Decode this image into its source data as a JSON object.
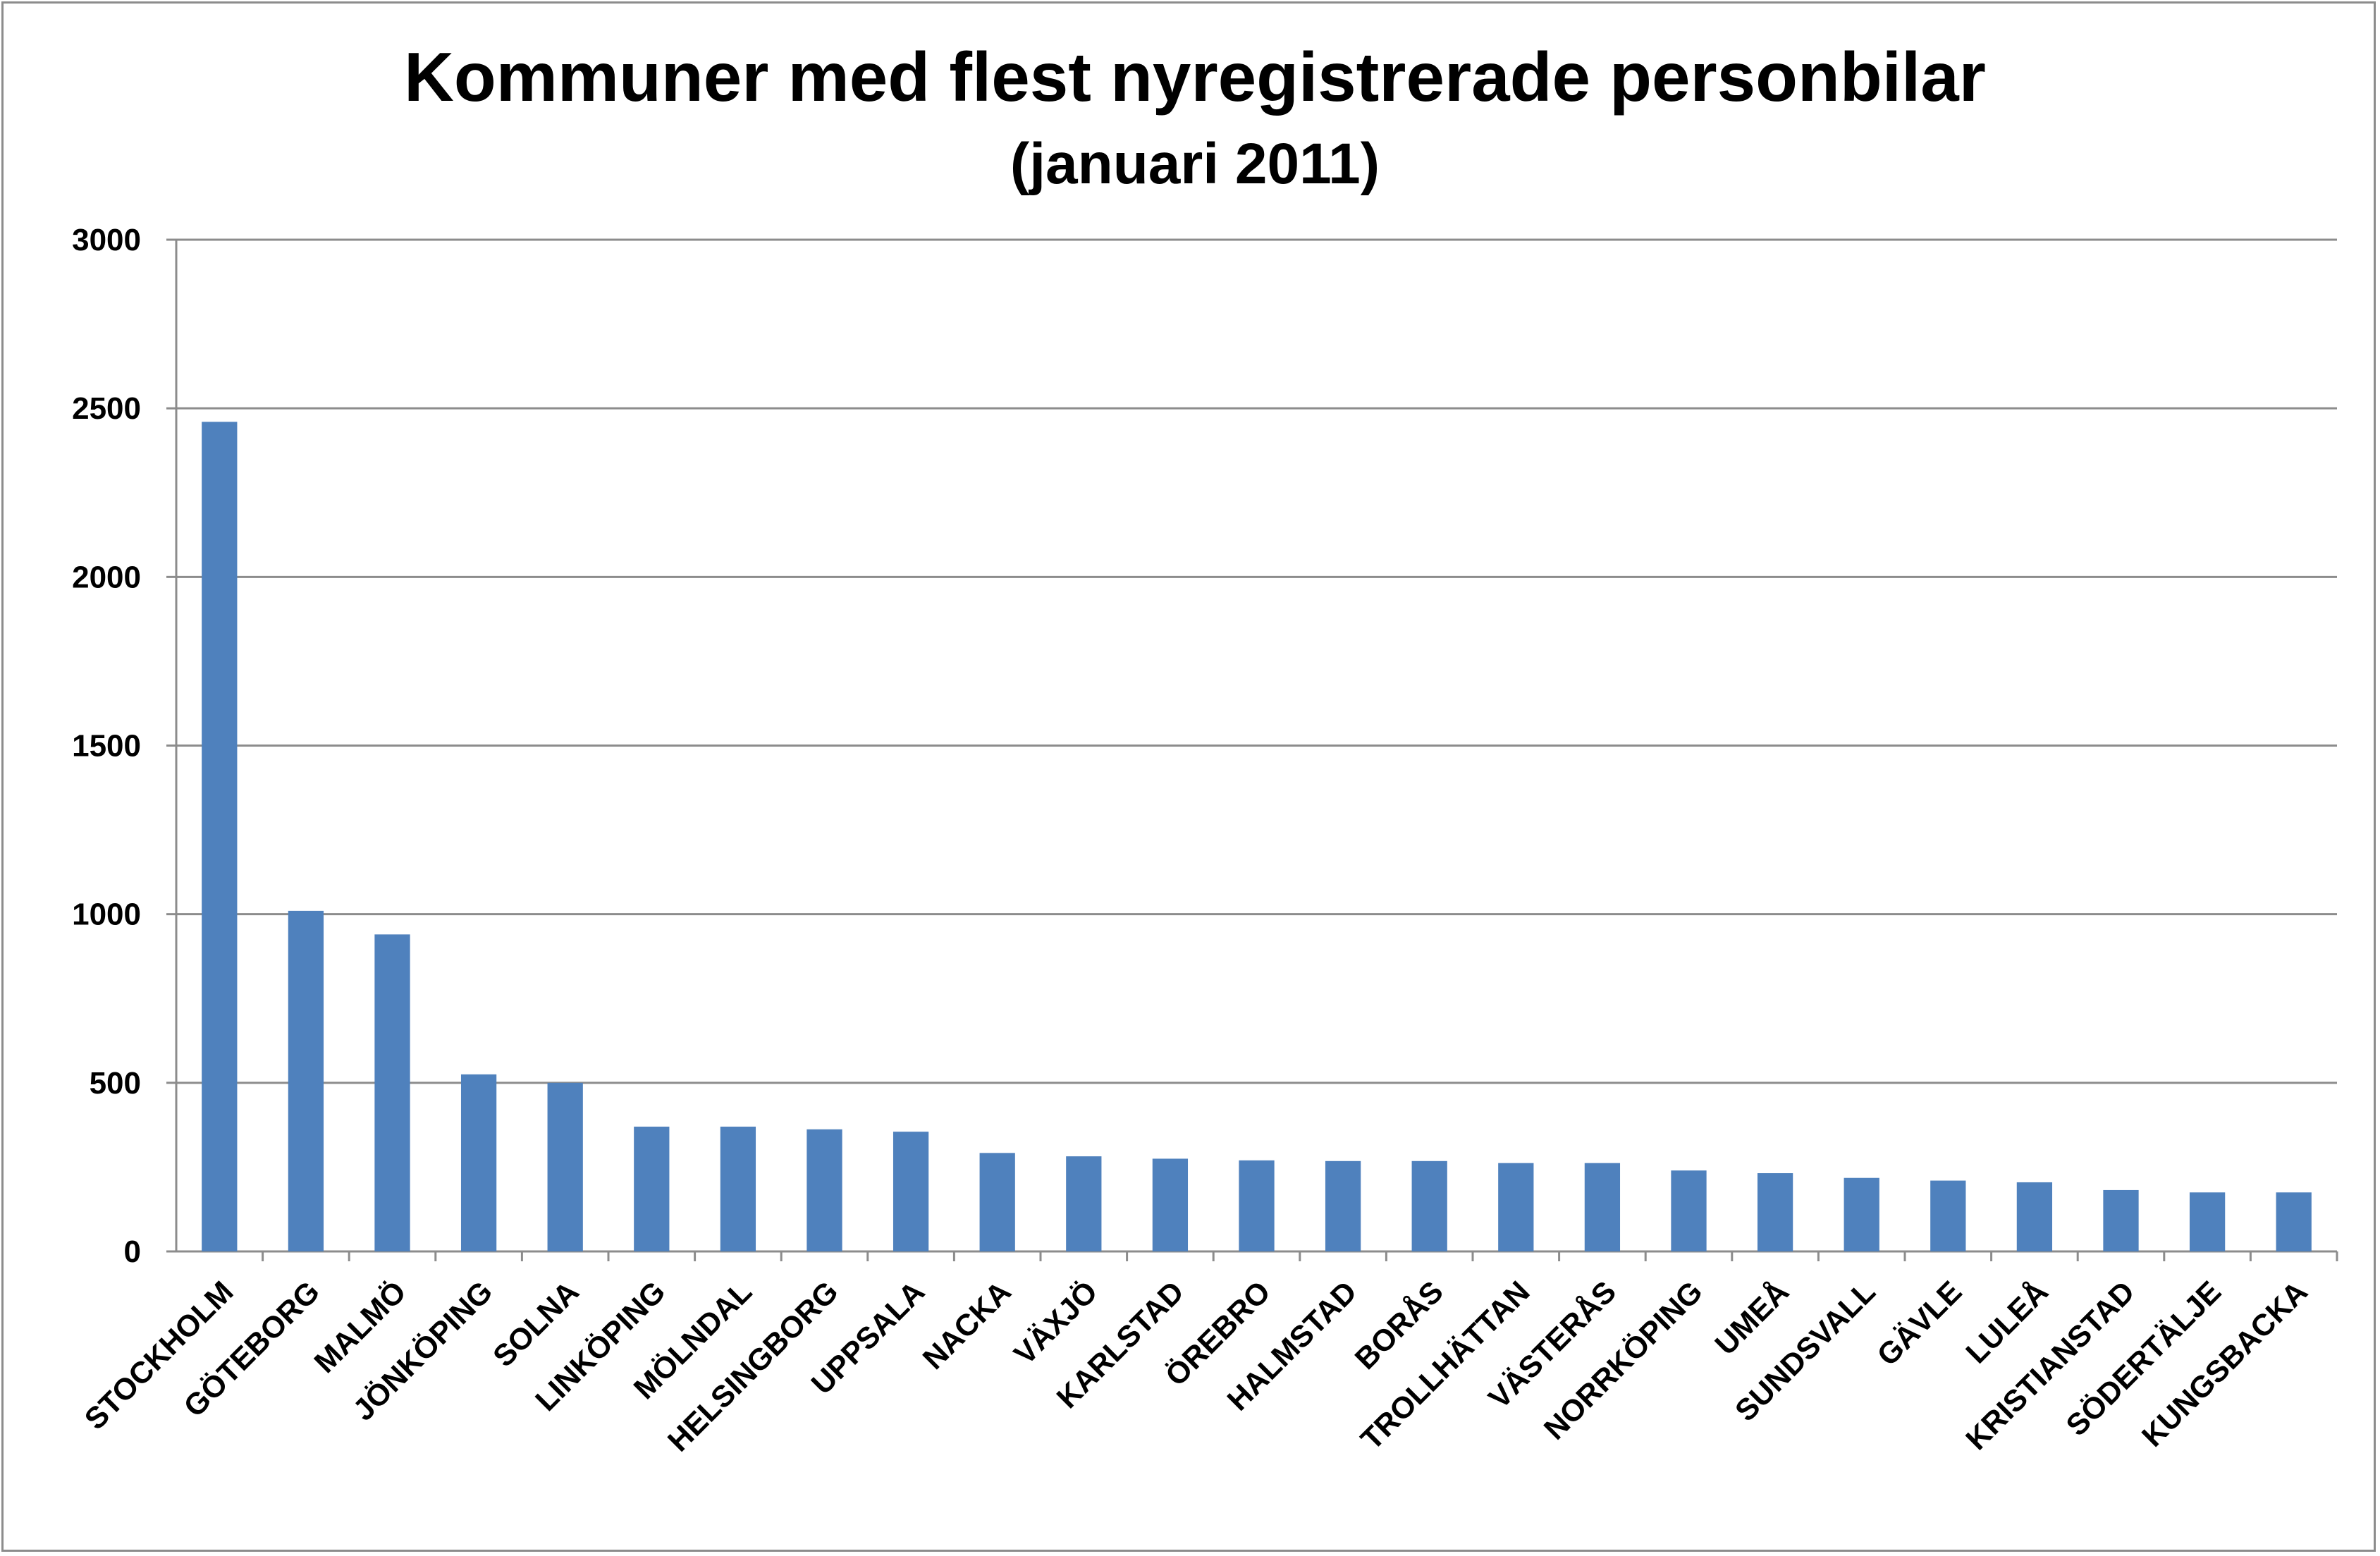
{
  "chart_data": {
    "type": "bar",
    "title": "Kommuner med flest nyregistrerade personbilar",
    "subtitle": "(januari 2011)",
    "xlabel": "",
    "ylabel": "",
    "ylim": [
      0,
      3000
    ],
    "yticks": [
      0,
      500,
      1000,
      1500,
      2000,
      2500,
      3000
    ],
    "grid": true,
    "legend": "none",
    "bar_color": "#4f81bd",
    "grid_color": "#8c8c8c",
    "categories": [
      "STOCKHOLM",
      "GÖTEBORG",
      "MALMÖ",
      "JÖNKÖPING",
      "SOLNA",
      "LINKÖPING",
      "MÖLNDAL",
      "HELSINGBORG",
      "UPPSALA",
      "NACKA",
      "VÄXJÖ",
      "KARLSTAD",
      "ÖREBRO",
      "HALMSTAD",
      "BORÅS",
      "TROLLHÄTTAN",
      "VÄSTERÅS",
      "NORRKÖPING",
      "UMEÅ",
      "SUNDSVALL",
      "GÄVLE",
      "LULEÅ",
      "KRISTIANSTAD",
      "SÖDERTÄLJE",
      "KUNGSBACKA"
    ],
    "values": [
      2460,
      1010,
      940,
      525,
      500,
      370,
      370,
      362,
      355,
      292,
      282,
      275,
      270,
      268,
      268,
      262,
      262,
      240,
      232,
      218,
      210,
      205,
      182,
      175,
      175
    ]
  }
}
